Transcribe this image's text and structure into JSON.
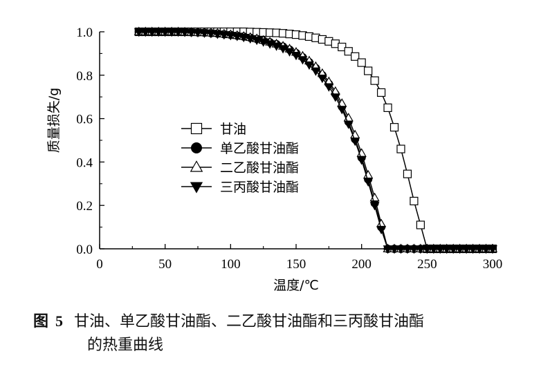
{
  "chart_data": {
    "type": "line",
    "xlabel": "温度/℃",
    "ylabel": "质量损失/g",
    "xlim": [
      0,
      300
    ],
    "ylim": [
      0,
      1.0
    ],
    "xticks": [
      "0",
      "50",
      "100",
      "150",
      "200",
      "250",
      "300"
    ],
    "yticks": [
      "0.0",
      "0.2",
      "0.4",
      "0.6",
      "0.8",
      "1.0"
    ],
    "legend_position": "center-left",
    "series": [
      {
        "name": "甘油",
        "marker": "open-square",
        "x": [
          30,
          35,
          40,
          45,
          50,
          55,
          60,
          65,
          70,
          75,
          80,
          85,
          90,
          95,
          100,
          105,
          110,
          115,
          120,
          125,
          130,
          135,
          140,
          145,
          150,
          155,
          160,
          165,
          170,
          175,
          180,
          185,
          190,
          195,
          200,
          205,
          210,
          215,
          220,
          225,
          230,
          235,
          240,
          245,
          250,
          255,
          260,
          265,
          270,
          275,
          280,
          285,
          290,
          295,
          300
        ],
        "y": [
          1.0,
          1.0,
          1.0,
          1.0,
          1.0,
          1.0,
          1.0,
          1.0,
          1.0,
          1.0,
          1.0,
          1.0,
          1.0,
          1.0,
          1.0,
          1.0,
          1.0,
          0.999,
          0.998,
          0.997,
          0.996,
          0.995,
          0.993,
          0.99,
          0.987,
          0.983,
          0.978,
          0.972,
          0.965,
          0.956,
          0.945,
          0.93,
          0.91,
          0.886,
          0.858,
          0.82,
          0.775,
          0.72,
          0.65,
          0.56,
          0.46,
          0.345,
          0.22,
          0.11,
          0.0,
          0.0,
          0.0,
          0.0,
          0.0,
          0.0,
          0.0,
          0.0,
          0.0,
          0.0,
          0.0
        ]
      },
      {
        "name": "单乙酸甘油酯",
        "marker": "filled-circle",
        "x": [
          30,
          35,
          40,
          45,
          50,
          55,
          60,
          65,
          70,
          75,
          80,
          85,
          90,
          95,
          100,
          105,
          110,
          115,
          120,
          125,
          130,
          135,
          140,
          145,
          150,
          155,
          160,
          165,
          170,
          175,
          180,
          185,
          190,
          195,
          200,
          205,
          210,
          215,
          220,
          225,
          230,
          235,
          240,
          245,
          250,
          255,
          260,
          265,
          270,
          275,
          280,
          285,
          290,
          295,
          300
        ],
        "y": [
          1.0,
          1.0,
          1.0,
          1.0,
          1.0,
          1.0,
          1.0,
          0.999,
          0.998,
          0.997,
          0.996,
          0.994,
          0.992,
          0.989,
          0.986,
          0.982,
          0.978,
          0.973,
          0.967,
          0.96,
          0.952,
          0.943,
          0.932,
          0.918,
          0.902,
          0.883,
          0.86,
          0.833,
          0.8,
          0.76,
          0.713,
          0.655,
          0.585,
          0.505,
          0.42,
          0.32,
          0.21,
          0.1,
          0.0,
          0.0,
          0.0,
          0.0,
          0.0,
          0.0,
          0.0,
          0.0,
          0.0,
          0.0,
          0.0,
          0.0,
          0.0,
          0.0,
          0.0,
          0.0,
          0.0
        ]
      },
      {
        "name": "二乙酸甘油酯",
        "marker": "open-triangle",
        "x": [
          30,
          35,
          40,
          45,
          50,
          55,
          60,
          65,
          70,
          75,
          80,
          85,
          90,
          95,
          100,
          105,
          110,
          115,
          120,
          125,
          130,
          135,
          140,
          145,
          150,
          155,
          160,
          165,
          170,
          175,
          180,
          185,
          190,
          195,
          200,
          205,
          210,
          215,
          220,
          225,
          230,
          235,
          240,
          245,
          250,
          255,
          260,
          265,
          270,
          275,
          280,
          285,
          290,
          295,
          300
        ],
        "y": [
          1.0,
          1.0,
          1.0,
          1.0,
          1.0,
          1.0,
          1.0,
          0.999,
          0.998,
          0.997,
          0.996,
          0.995,
          0.993,
          0.99,
          0.987,
          0.983,
          0.979,
          0.974,
          0.968,
          0.961,
          0.953,
          0.944,
          0.934,
          0.921,
          0.906,
          0.888,
          0.866,
          0.84,
          0.808,
          0.77,
          0.725,
          0.67,
          0.603,
          0.525,
          0.44,
          0.34,
          0.235,
          0.115,
          0.0,
          0.0,
          0.0,
          0.0,
          0.0,
          0.0,
          0.0,
          0.0,
          0.0,
          0.0,
          0.0,
          0.0,
          0.0,
          0.0,
          0.0,
          0.0,
          0.0
        ]
      },
      {
        "name": "三丙酸甘油酯",
        "marker": "filled-inverted-triangle",
        "x": [
          30,
          35,
          40,
          45,
          50,
          55,
          60,
          65,
          70,
          75,
          80,
          85,
          90,
          95,
          100,
          105,
          110,
          115,
          120,
          125,
          130,
          135,
          140,
          145,
          150,
          155,
          160,
          165,
          170,
          175,
          180,
          185,
          190,
          195,
          200,
          205,
          210,
          215,
          220,
          225,
          230,
          235,
          240,
          245,
          250,
          255,
          260,
          265,
          270,
          275,
          280,
          285,
          290,
          295,
          300
        ],
        "y": [
          1.0,
          1.0,
          1.0,
          1.0,
          1.0,
          1.0,
          1.0,
          0.999,
          0.998,
          0.997,
          0.995,
          0.993,
          0.99,
          0.987,
          0.984,
          0.98,
          0.975,
          0.969,
          0.962,
          0.954,
          0.945,
          0.935,
          0.923,
          0.909,
          0.892,
          0.872,
          0.848,
          0.82,
          0.787,
          0.747,
          0.7,
          0.643,
          0.575,
          0.497,
          0.41,
          0.31,
          0.2,
          0.09,
          0.0,
          0.0,
          0.0,
          0.0,
          0.0,
          0.0,
          0.0,
          0.0,
          0.0,
          0.0,
          0.0,
          0.0,
          0.0,
          0.0,
          0.0,
          0.0,
          0.0
        ]
      }
    ]
  },
  "caption": {
    "figure_label": "图",
    "figure_number": "5",
    "line1": "甘油、单乙酸甘油酯、二乙酸甘油酯和三丙酸甘油酯",
    "line2": "的热重曲线"
  }
}
